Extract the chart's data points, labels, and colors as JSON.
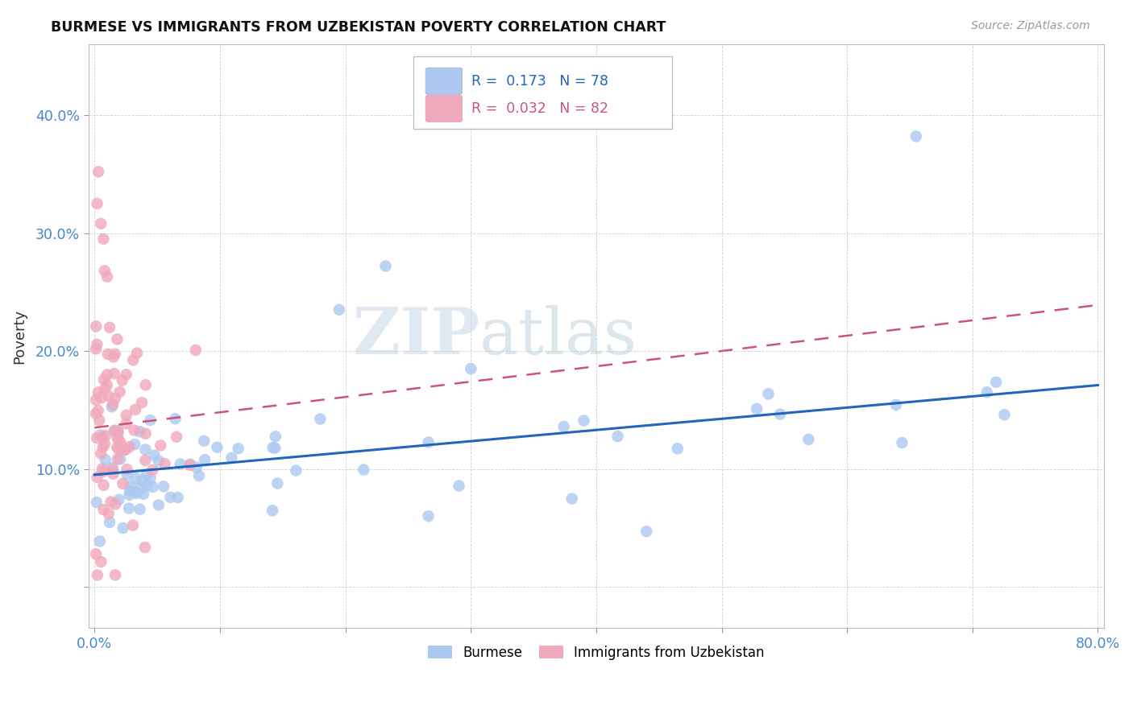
{
  "title": "BURMESE VS IMMIGRANTS FROM UZBEKISTAN POVERTY CORRELATION CHART",
  "source": "Source: ZipAtlas.com",
  "ylabel": "Poverty",
  "burmese_color": "#adc8f0",
  "uzbek_color": "#f0a8bc",
  "burmese_line_color": "#2266bb",
  "uzbek_line_color": "#cc5577",
  "watermark_zip": "ZIP",
  "watermark_atlas": "atlas",
  "legend_r1": "R =  0.173",
  "legend_n1": "N = 78",
  "legend_r2": "R =  0.032",
  "legend_n2": "N = 82",
  "xlim": [
    -0.005,
    0.805
  ],
  "ylim": [
    -0.035,
    0.46
  ],
  "xtick_positions": [
    0.0,
    0.1,
    0.2,
    0.3,
    0.4,
    0.5,
    0.6,
    0.7,
    0.8
  ],
  "xtick_labels": [
    "0.0%",
    "",
    "",
    "",
    "",
    "",
    "",
    "",
    "80.0%"
  ],
  "ytick_positions": [
    0.0,
    0.1,
    0.2,
    0.3,
    0.4
  ],
  "ytick_labels": [
    "",
    "10.0%",
    "20.0%",
    "30.0%",
    "40.0%"
  ],
  "burmese_intercept": 0.088,
  "burmese_slope": 0.1,
  "uzbek_intercept": 0.125,
  "uzbek_slope": 0.14
}
